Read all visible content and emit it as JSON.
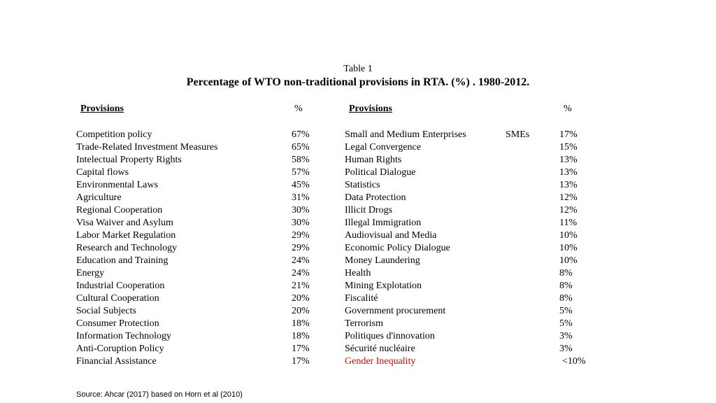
{
  "table": {
    "caption": "Table 1",
    "title": "Percentage of WTO non-traditional provisions in RTA. (%) . 1980-2012.",
    "left_header": {
      "provisions": "Provisions",
      "percent": "%"
    },
    "right_header": {
      "provisions": "Provisions",
      "percent": "%"
    },
    "left_rows": [
      {
        "name": "Competition policy",
        "pct": "67%"
      },
      {
        "name": "Trade-Related Investment Measures",
        "pct": "65%"
      },
      {
        "name": "Intelectual Property Rights",
        "pct": "58%"
      },
      {
        "name": "Capital flows",
        "pct": "57%"
      },
      {
        "name": "Environmental  Laws",
        "pct": "45%"
      },
      {
        "name": "Agriculture",
        "pct": "31%"
      },
      {
        "name": "Regional Cooperation",
        "pct": "30%"
      },
      {
        "name": "Visa Waiver and Asylum",
        "pct": "30%"
      },
      {
        "name": "Labor Market Regulation",
        "pct": "29%"
      },
      {
        "name": "Research and Technology",
        "pct": "29%"
      },
      {
        "name": "Education and Training",
        "pct": "24%"
      },
      {
        "name": "Energy",
        "pct": "24%"
      },
      {
        "name": "Industrial Cooperation",
        "pct": "21%"
      },
      {
        "name": "Cultural Cooperation",
        "pct": "20%"
      },
      {
        "name": "Social Subjects",
        "pct": "20%"
      },
      {
        "name": "Consumer Protection",
        "pct": "18%"
      },
      {
        "name": "Information Technology",
        "pct": "18%"
      },
      {
        "name": "Anti-Coruption Policy",
        "pct": "17%"
      },
      {
        "name": "Financial Assistance",
        "pct": "17%"
      }
    ],
    "right_rows": [
      {
        "name": "Small and Medium Enterprises",
        "abbr": "SMEs",
        "pct": "17%"
      },
      {
        "name": "Legal Convergence",
        "pct": "15%"
      },
      {
        "name": "Human Rights",
        "pct": "13%"
      },
      {
        "name": "Political Dialogue",
        "pct": "13%"
      },
      {
        "name": "Statistics",
        "pct": "13%"
      },
      {
        "name": "Data Protection",
        "pct": "12%"
      },
      {
        "name": "Illicit Drogs",
        "pct": "12%"
      },
      {
        "name": "Illegal Immigration",
        "pct": "11%"
      },
      {
        "name": "Audiovisual and Media",
        "pct": "10%"
      },
      {
        "name": "Economic Policy Dialogue",
        "pct": "10%"
      },
      {
        "name": "Money Laundering",
        "pct": "10%"
      },
      {
        "name": "Health",
        "pct": "8%"
      },
      {
        "name": "Mining Explotation",
        "pct": "8%"
      },
      {
        "name": "Fiscalité",
        "pct": "8%"
      },
      {
        "name": "Government procurement",
        "pct": "5%"
      },
      {
        "name": "Terrorism",
        "pct": "5%"
      },
      {
        "name": "Politiques d'innovation",
        "pct": "3%"
      },
      {
        "name": "Sécurité nucléaire",
        "pct": "3%"
      },
      {
        "name": "Gender Inequality",
        "pct": "<10%",
        "highlight": true
      }
    ]
  },
  "colors": {
    "highlight": "#e00000",
    "text": "#000000",
    "background": "#ffffff"
  },
  "source": "Source: Ahcar (2017) based on Horn et al (2010)"
}
